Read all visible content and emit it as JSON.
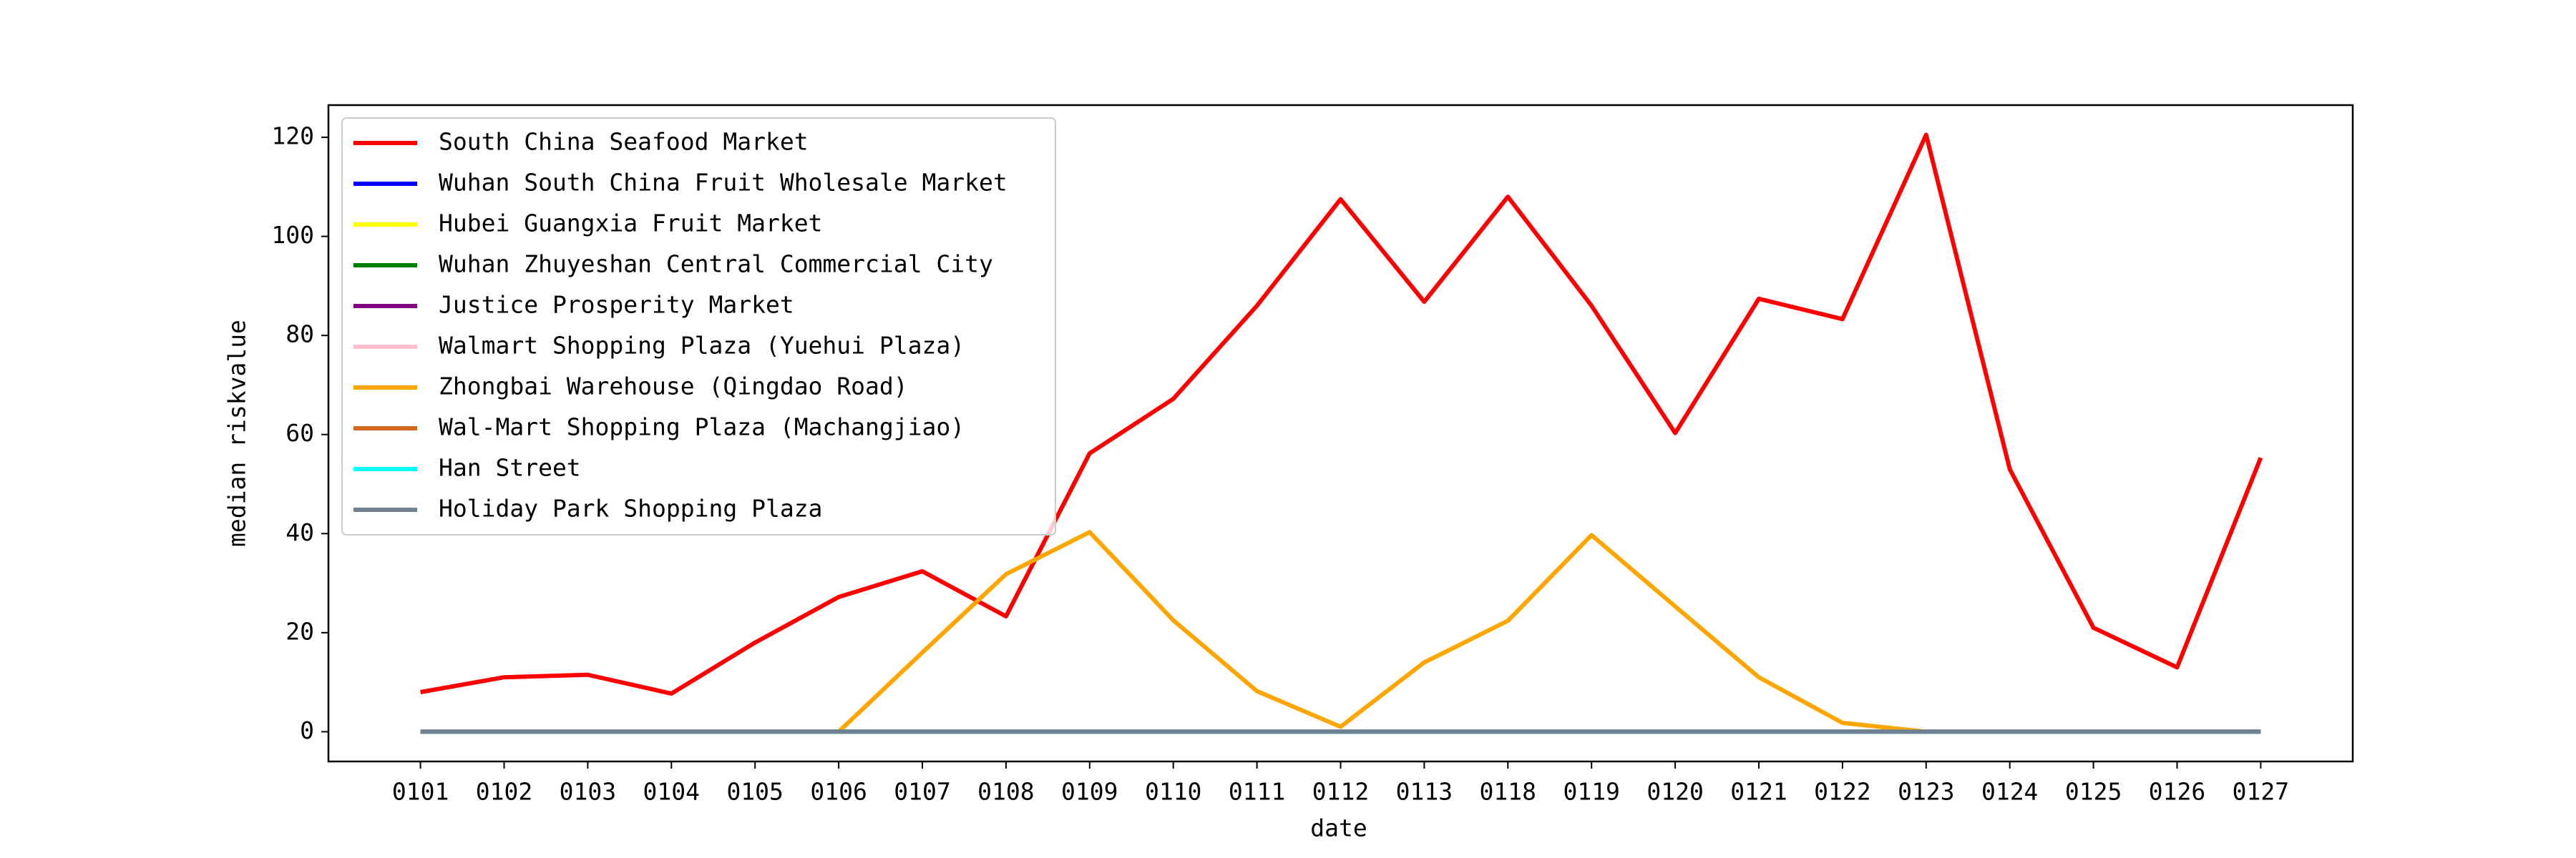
{
  "chart_data": {
    "type": "line",
    "xlabel": "date",
    "ylabel": "median riskvalue",
    "categories": [
      "0101",
      "0102",
      "0103",
      "0104",
      "0105",
      "0106",
      "0107",
      "0108",
      "0109",
      "0110",
      "0111",
      "0112",
      "0113",
      "0118",
      "0119",
      "0120",
      "0121",
      "0122",
      "0123",
      "0124",
      "0125",
      "0126",
      "0127"
    ],
    "series": [
      {
        "name": "South China Seafood Market",
        "color": "#ff0000",
        "values": [
          8,
          11,
          11.5,
          7.7,
          18,
          27.2,
          32.4,
          23.3,
          56.2,
          67.2,
          86,
          107.5,
          86.8,
          108,
          86,
          60.3,
          87.4,
          83.3,
          120.5,
          53,
          21,
          13,
          55.3
        ]
      },
      {
        "name": "Wuhan South China Fruit Wholesale Market",
        "color": "#0000ff",
        "values": [
          0,
          0,
          0,
          0,
          0,
          0,
          0,
          0,
          0,
          0,
          0,
          0,
          0,
          0,
          0,
          0,
          0,
          0,
          0,
          0,
          0,
          0,
          0
        ]
      },
      {
        "name": "Hubei Guangxia Fruit Market",
        "color": "#ffff00",
        "values": [
          0,
          0,
          0,
          0,
          0,
          0,
          0,
          0,
          0,
          0,
          0,
          0,
          0,
          0,
          0,
          0,
          0,
          0,
          0,
          0,
          0,
          0,
          0
        ]
      },
      {
        "name": "Wuhan Zhuyeshan Central Commercial City",
        "color": "#008000",
        "values": [
          0,
          0,
          0,
          0,
          0,
          0,
          0,
          0,
          0,
          0,
          0,
          0,
          0,
          0,
          0,
          0,
          0,
          0,
          0,
          0,
          0,
          0,
          0
        ]
      },
      {
        "name": "Justice Prosperity Market",
        "color": "#800080",
        "values": [
          0,
          0,
          0,
          0,
          0,
          0,
          0,
          0,
          0,
          0,
          0,
          0,
          0,
          0,
          0,
          0,
          0,
          0,
          0,
          0,
          0,
          0,
          0
        ]
      },
      {
        "name": "Walmart Shopping Plaza (Yuehui Plaza)",
        "color": "#ffc0cb",
        "values": [
          0,
          0,
          0,
          0,
          0,
          0,
          0,
          0,
          0,
          0,
          0,
          0,
          0,
          0,
          0,
          0,
          0,
          0,
          0,
          0,
          0,
          0,
          0
        ]
      },
      {
        "name": "Zhongbai Warehouse (Qingdao Road)",
        "color": "#ffa500",
        "values": [
          0,
          0,
          0,
          0,
          0,
          0,
          16,
          31.8,
          40.3,
          22.5,
          8.2,
          1,
          14,
          22.4,
          39.7,
          25.3,
          11,
          1.8,
          0,
          0,
          0,
          0,
          0
        ]
      },
      {
        "name": "Wal-Mart Shopping Plaza (Machangjiao)",
        "color": "#d2691e",
        "values": [
          0,
          0,
          0,
          0,
          0,
          0,
          0,
          0,
          0,
          0,
          0,
          0,
          0,
          0,
          0,
          0,
          0,
          0,
          0,
          0,
          0,
          0,
          0
        ]
      },
      {
        "name": "Han Street",
        "color": "#00ffff",
        "values": [
          0,
          0,
          0,
          0,
          0,
          0,
          0,
          0,
          0,
          0,
          0,
          0,
          0,
          0,
          0,
          0,
          0,
          0,
          0,
          0,
          0,
          0,
          0
        ]
      },
      {
        "name": "Holiday Park Shopping Plaza",
        "color": "#708090",
        "values": [
          0,
          0,
          0,
          0,
          0,
          0,
          0,
          0,
          0,
          0,
          0,
          0,
          0,
          0,
          0,
          0,
          0,
          0,
          0,
          0,
          0,
          0,
          0
        ]
      }
    ],
    "ylim": [
      -6,
      126.5
    ],
    "yticks": [
      0,
      20,
      40,
      60,
      80,
      100,
      120
    ],
    "grid": false,
    "legend": "upper left"
  }
}
